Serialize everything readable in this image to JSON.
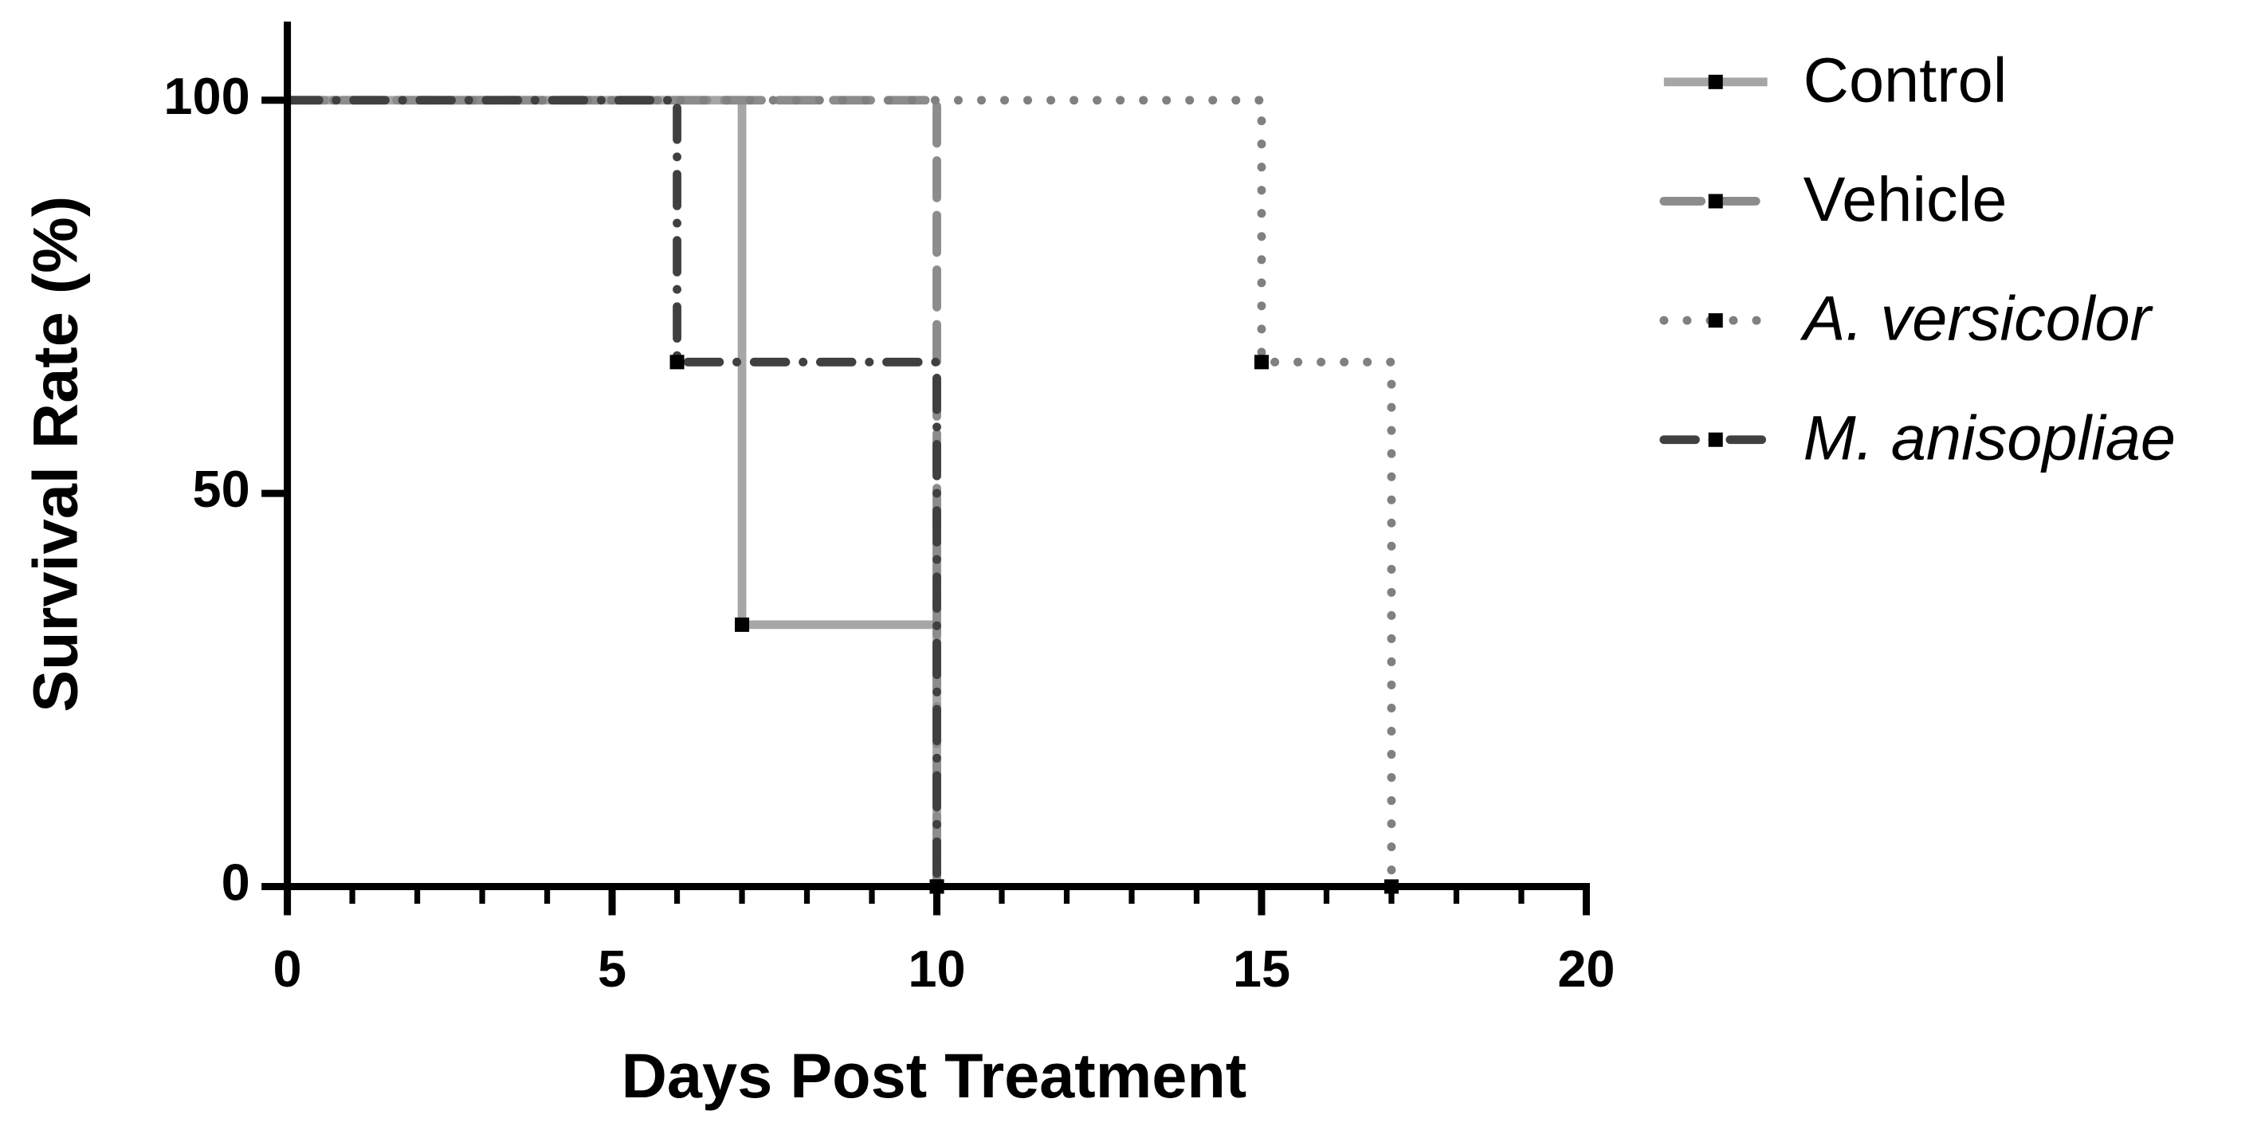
{
  "chart_data": {
    "type": "survival",
    "xlabel": "Days Post Treatment",
    "ylabel": "Survival Rate (%)",
    "xlim": [
      0,
      20
    ],
    "xticks": [
      0,
      5,
      10,
      15,
      20
    ],
    "xminorstep": 1,
    "ylim": [
      0,
      110
    ],
    "yticks": [
      0,
      50,
      100
    ],
    "series": [
      {
        "name": "Control",
        "color": "#a6a6a6",
        "dash": "solid",
        "italic": false,
        "x": [
          0,
          7,
          7,
          10,
          10
        ],
        "values": [
          100,
          100,
          33.3,
          33.3,
          0
        ]
      },
      {
        "name": "Vehicle",
        "color": "#8c8c8c",
        "dash": "dashed",
        "italic": false,
        "x": [
          0,
          10,
          10
        ],
        "values": [
          100,
          100,
          0
        ]
      },
      {
        "name": "A. versicolor",
        "color": "#808080",
        "dash": "dotted",
        "italic": true,
        "x": [
          0,
          15,
          15,
          17,
          17
        ],
        "values": [
          100,
          100,
          66.7,
          66.7,
          0
        ]
      },
      {
        "name": "M. anisopliae",
        "color": "#404040",
        "dash": "dashdot",
        "italic": true,
        "x": [
          0,
          6,
          6,
          10,
          10
        ],
        "values": [
          100,
          100,
          66.7,
          66.7,
          0
        ]
      }
    ]
  }
}
